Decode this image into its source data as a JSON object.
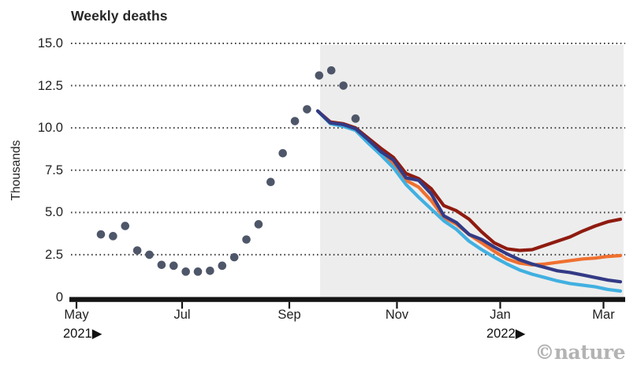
{
  "title": "Weekly deaths",
  "y_axis_label": "Thousands",
  "credit": "©nature",
  "chart_data": {
    "type": "line+scatter",
    "title": "Weekly deaths",
    "ylabel": "Thousands",
    "ylim": [
      0,
      15
    ],
    "yticks": [
      15.0,
      12.5,
      10.0,
      7.5,
      5.0,
      2.5,
      0
    ],
    "ytick_labels": [
      "15.0",
      "12.5",
      "10.0",
      "7.5",
      "5.0",
      "2.5",
      "0"
    ],
    "grid": "dotted-horizontal",
    "x_axis": {
      "tick_labels": [
        "May",
        "Jul",
        "Sep",
        "Nov",
        "Jan",
        "Mar"
      ],
      "year_markers": [
        {
          "text": "2021▶",
          "anchor_month": "May"
        },
        {
          "text": "2022▶",
          "anchor_month": "Jan"
        }
      ],
      "interval": "weekly points from mid-May 2021 to mid-Mar 2022"
    },
    "projection_region": {
      "starts": "mid-Sep 2021",
      "shading": "#ededed"
    },
    "colors": {
      "axis": "#141414",
      "gridline": "#3f3f3f",
      "shading": "#ededed"
    },
    "series": [
      {
        "name": "observed-weekly-deaths",
        "type": "scatter",
        "color": "#4e5669",
        "start": "mid-May 2021",
        "values": [
          3.7,
          3.6,
          4.2,
          2.75,
          2.5,
          1.9,
          1.85,
          1.5,
          1.5,
          1.55,
          1.85,
          2.35,
          3.4,
          4.3,
          6.8,
          8.5,
          10.4,
          11.1,
          13.1,
          13.4,
          12.5,
          10.55
        ]
      },
      {
        "name": "projection-dark-red",
        "type": "line",
        "color": "#8f1b10",
        "start": "mid-Sep 2021",
        "values": [
          11.0,
          10.35,
          10.25,
          10.0,
          9.4,
          8.8,
          8.25,
          7.3,
          7.0,
          6.4,
          5.4,
          5.1,
          4.6,
          3.85,
          3.2,
          2.85,
          2.75,
          2.8,
          3.05,
          3.3,
          3.55,
          3.9,
          4.2,
          4.45,
          4.6
        ]
      },
      {
        "name": "projection-orange",
        "type": "line",
        "color": "#ef7030",
        "start": "mid-Sep 2021",
        "values": [
          11.0,
          10.3,
          10.2,
          9.9,
          9.25,
          8.55,
          7.9,
          6.9,
          6.5,
          5.7,
          4.7,
          4.3,
          3.7,
          3.2,
          2.7,
          2.25,
          2.0,
          1.9,
          1.95,
          2.05,
          2.15,
          2.25,
          2.3,
          2.4,
          2.45
        ]
      },
      {
        "name": "projection-light-blue",
        "type": "line",
        "color": "#41b0e1",
        "start": "mid-Sep 2021",
        "values": [
          11.0,
          10.25,
          10.1,
          9.85,
          9.1,
          8.4,
          7.65,
          6.65,
          5.9,
          5.2,
          4.5,
          4.0,
          3.3,
          2.8,
          2.35,
          1.95,
          1.6,
          1.35,
          1.15,
          0.95,
          0.8,
          0.7,
          0.6,
          0.45,
          0.35
        ]
      },
      {
        "name": "projection-navy",
        "type": "line",
        "color": "#333a85",
        "start": "mid-Sep 2021",
        "values": [
          11.0,
          10.3,
          10.2,
          9.95,
          9.3,
          8.6,
          8.1,
          7.05,
          6.9,
          6.1,
          4.8,
          4.4,
          3.7,
          3.4,
          2.95,
          2.55,
          2.2,
          1.95,
          1.75,
          1.55,
          1.45,
          1.3,
          1.15,
          1.0,
          0.9
        ]
      }
    ]
  }
}
